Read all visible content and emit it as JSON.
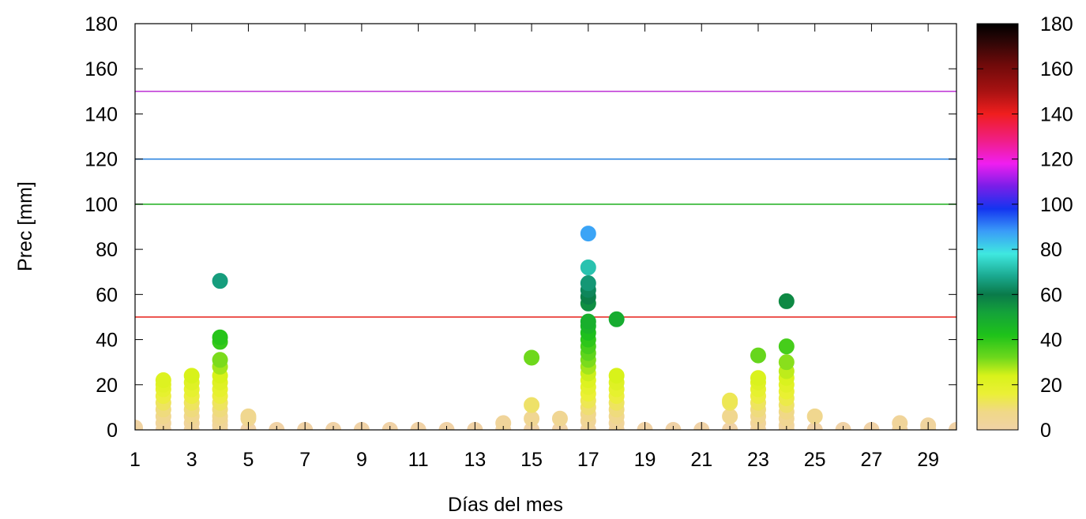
{
  "chart_data": {
    "type": "scatter",
    "xlabel": "Días del mes",
    "ylabel": "Prec [mm]",
    "xlim": [
      1,
      30
    ],
    "ylim": [
      0,
      180
    ],
    "x_ticks": [
      1,
      3,
      5,
      7,
      9,
      11,
      13,
      15,
      17,
      19,
      21,
      23,
      25,
      27,
      29
    ],
    "y_ticks": [
      0,
      20,
      40,
      60,
      80,
      100,
      120,
      140,
      160,
      180
    ],
    "grid": false,
    "threshold_lines": [
      {
        "value": 50,
        "color": "#e8302a"
      },
      {
        "value": 100,
        "color": "#2fb52f"
      },
      {
        "value": 120,
        "color": "#2f86e0"
      },
      {
        "value": 150,
        "color": "#c13fd8"
      }
    ],
    "colorbar": {
      "range": [
        0,
        180
      ],
      "ticks": [
        0,
        20,
        40,
        60,
        80,
        100,
        120,
        140,
        160,
        180
      ],
      "stops": [
        {
          "v": 0,
          "c": "#f0d2a6"
        },
        {
          "v": 8,
          "c": "#f0d887"
        },
        {
          "v": 16,
          "c": "#ebf036"
        },
        {
          "v": 24,
          "c": "#d8f21a"
        },
        {
          "v": 32,
          "c": "#6ed81c"
        },
        {
          "v": 42,
          "c": "#1ec21a"
        },
        {
          "v": 52,
          "c": "#14a23a"
        },
        {
          "v": 60,
          "c": "#0a7a4a"
        },
        {
          "v": 68,
          "c": "#1aa88e"
        },
        {
          "v": 78,
          "c": "#3fe8e0"
        },
        {
          "v": 88,
          "c": "#3a9cf8"
        },
        {
          "v": 98,
          "c": "#1434f0"
        },
        {
          "v": 108,
          "c": "#7a1ee8"
        },
        {
          "v": 118,
          "c": "#f01ef0"
        },
        {
          "v": 128,
          "c": "#f01e88"
        },
        {
          "v": 140,
          "c": "#f01e1e"
        },
        {
          "v": 150,
          "c": "#a81212"
        },
        {
          "v": 162,
          "c": "#6e0a0a"
        },
        {
          "v": 172,
          "c": "#2e0606"
        },
        {
          "v": 180,
          "c": "#000000"
        }
      ]
    },
    "series": [
      {
        "points": [
          [
            1,
            0
          ],
          [
            1,
            1
          ],
          [
            2,
            0
          ],
          [
            2,
            3
          ],
          [
            2,
            6
          ],
          [
            2,
            9
          ],
          [
            2,
            12
          ],
          [
            2,
            15
          ],
          [
            2,
            18
          ],
          [
            2,
            20
          ],
          [
            2,
            22
          ],
          [
            3,
            0
          ],
          [
            3,
            3
          ],
          [
            3,
            6
          ],
          [
            3,
            9
          ],
          [
            3,
            12
          ],
          [
            3,
            15
          ],
          [
            3,
            18
          ],
          [
            3,
            21
          ],
          [
            3,
            24
          ],
          [
            4,
            0
          ],
          [
            4,
            2
          ],
          [
            4,
            4
          ],
          [
            4,
            6
          ],
          [
            4,
            9
          ],
          [
            4,
            12
          ],
          [
            4,
            15
          ],
          [
            4,
            18
          ],
          [
            4,
            21
          ],
          [
            4,
            24
          ],
          [
            4,
            28
          ],
          [
            4,
            31
          ],
          [
            4,
            39
          ],
          [
            4,
            41
          ],
          [
            4,
            66
          ],
          [
            5,
            0
          ],
          [
            5,
            5
          ],
          [
            5,
            6
          ],
          [
            6,
            0
          ],
          [
            7,
            0
          ],
          [
            8,
            0
          ],
          [
            9,
            0
          ],
          [
            10,
            0
          ],
          [
            11,
            0
          ],
          [
            12,
            0
          ],
          [
            13,
            0
          ],
          [
            14,
            0
          ],
          [
            14,
            3
          ],
          [
            15,
            0
          ],
          [
            15,
            5
          ],
          [
            15,
            11
          ],
          [
            15,
            32
          ],
          [
            16,
            0
          ],
          [
            16,
            5
          ],
          [
            17,
            0
          ],
          [
            17,
            4
          ],
          [
            17,
            7
          ],
          [
            17,
            10
          ],
          [
            17,
            13
          ],
          [
            17,
            16
          ],
          [
            17,
            19
          ],
          [
            17,
            22
          ],
          [
            17,
            25
          ],
          [
            17,
            28
          ],
          [
            17,
            31
          ],
          [
            17,
            34
          ],
          [
            17,
            37
          ],
          [
            17,
            40
          ],
          [
            17,
            43
          ],
          [
            17,
            46
          ],
          [
            17,
            48
          ],
          [
            17,
            56
          ],
          [
            17,
            59
          ],
          [
            17,
            62
          ],
          [
            17,
            65
          ],
          [
            17,
            72
          ],
          [
            17,
            87
          ],
          [
            18,
            0
          ],
          [
            18,
            3
          ],
          [
            18,
            6
          ],
          [
            18,
            9
          ],
          [
            18,
            12
          ],
          [
            18,
            15
          ],
          [
            18,
            18
          ],
          [
            18,
            21
          ],
          [
            18,
            24
          ],
          [
            18,
            49
          ],
          [
            19,
            0
          ],
          [
            20,
            0
          ],
          [
            21,
            0
          ],
          [
            22,
            0
          ],
          [
            22,
            6
          ],
          [
            22,
            12
          ],
          [
            22,
            13
          ],
          [
            23,
            0
          ],
          [
            23,
            3
          ],
          [
            23,
            6
          ],
          [
            23,
            9
          ],
          [
            23,
            12
          ],
          [
            23,
            15
          ],
          [
            23,
            18
          ],
          [
            23,
            21
          ],
          [
            23,
            23
          ],
          [
            23,
            33
          ],
          [
            24,
            0
          ],
          [
            24,
            2
          ],
          [
            24,
            5
          ],
          [
            24,
            8
          ],
          [
            24,
            11
          ],
          [
            24,
            14
          ],
          [
            24,
            17
          ],
          [
            24,
            20
          ],
          [
            24,
            23
          ],
          [
            24,
            26
          ],
          [
            24,
            30
          ],
          [
            24,
            37
          ],
          [
            24,
            57
          ],
          [
            25,
            0
          ],
          [
            25,
            6
          ],
          [
            26,
            0
          ],
          [
            27,
            0
          ],
          [
            28,
            0
          ],
          [
            28,
            3
          ],
          [
            29,
            0
          ],
          [
            29,
            2
          ],
          [
            30,
            0
          ]
        ]
      }
    ]
  }
}
